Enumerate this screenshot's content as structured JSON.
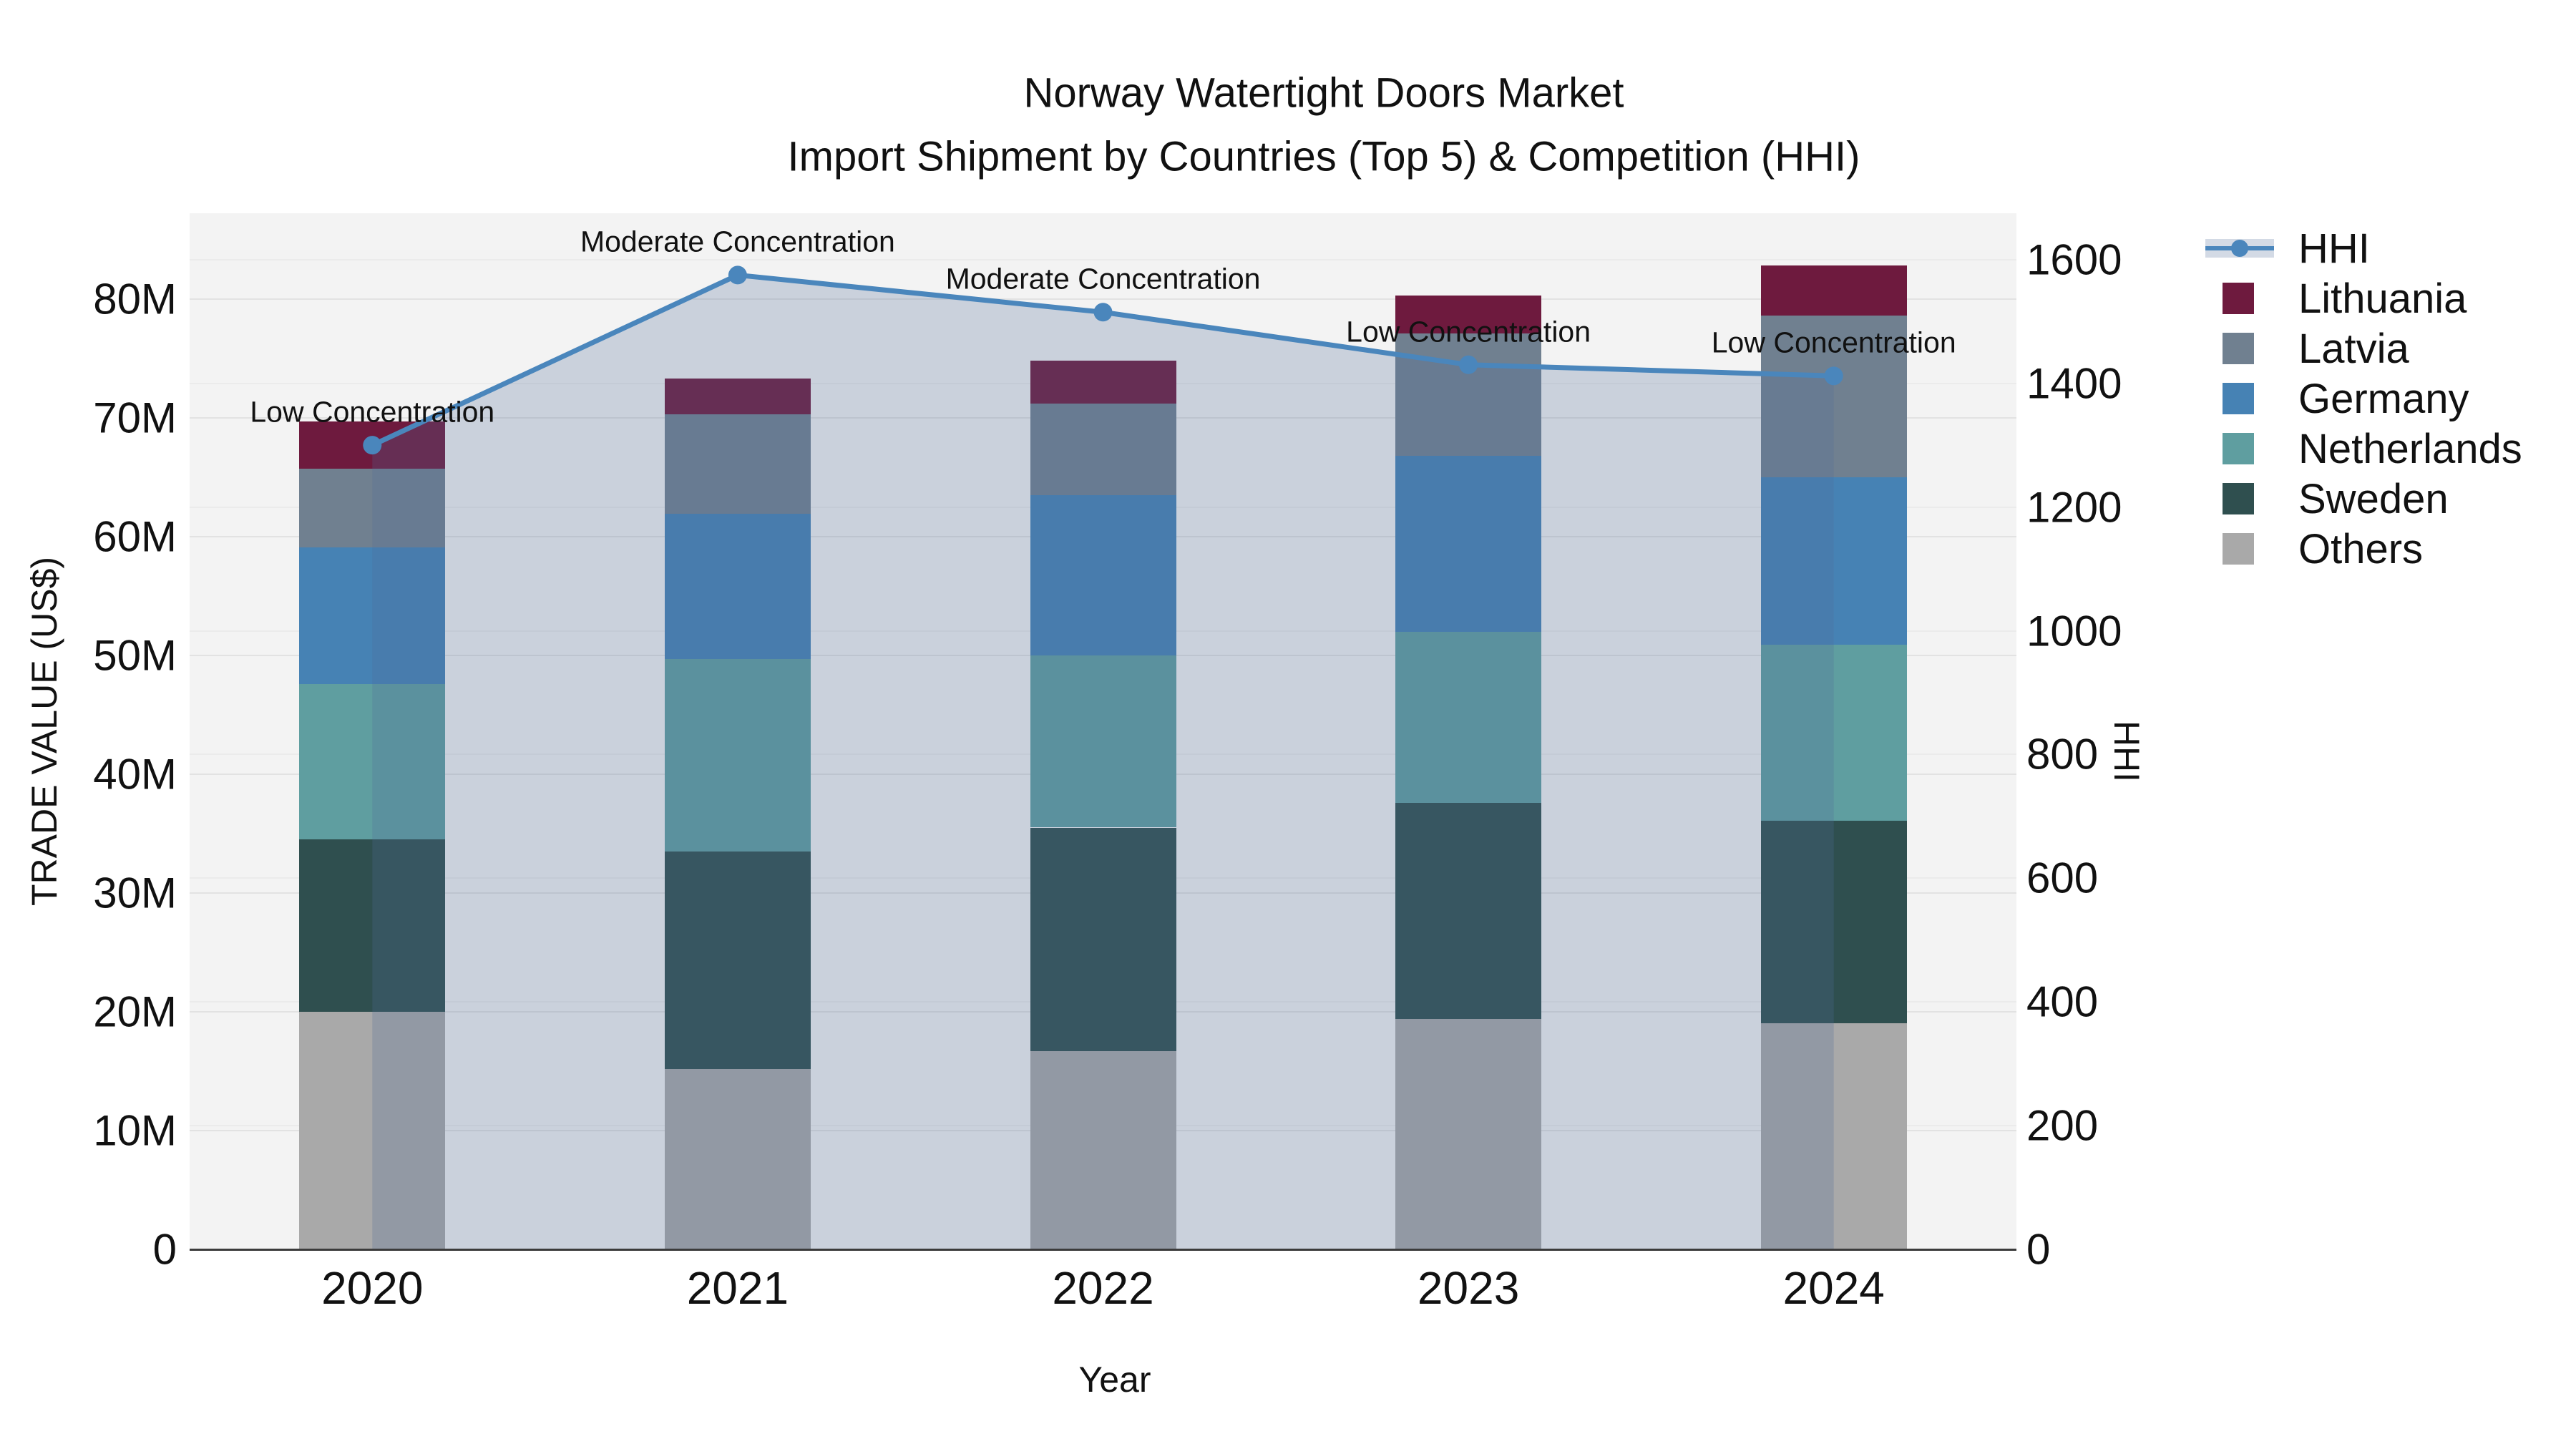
{
  "title": {
    "line1": "Norway Watertight Doors Market",
    "line2": "Import Shipment by Countries (Top 5) & Competition (HHI)"
  },
  "axes": {
    "y_left": {
      "title": "TRADE VALUE (US$)",
      "tick_labels": [
        "0",
        "10M",
        "20M",
        "30M",
        "40M",
        "50M",
        "60M",
        "70M",
        "80M"
      ],
      "tick_values_m": [
        0,
        10,
        20,
        30,
        40,
        50,
        60,
        70,
        80
      ],
      "range_m": [
        0,
        87.2
      ]
    },
    "y_right": {
      "title": "HHI",
      "tick_labels": [
        "0",
        "200",
        "400",
        "600",
        "800",
        "1000",
        "1200",
        "1400",
        "1600"
      ],
      "tick_values": [
        0,
        200,
        400,
        600,
        800,
        1000,
        1200,
        1400,
        1600
      ],
      "range": [
        0,
        1675
      ]
    },
    "x": {
      "title": "Year",
      "categories": [
        "2020",
        "2021",
        "2022",
        "2023",
        "2024"
      ]
    }
  },
  "chart_data": {
    "type": "combo",
    "categories": [
      "2020",
      "2021",
      "2022",
      "2023",
      "2024"
    ],
    "bar": {
      "type": "bar",
      "stacked": true,
      "unit": "M US$",
      "stack_order_bottom_to_top": [
        "Others",
        "Sweden",
        "Netherlands",
        "Germany",
        "Latvia",
        "Lithuania"
      ],
      "series": [
        {
          "name": "Others",
          "color": "#A9A9A9",
          "values": [
            20.0,
            15.2,
            16.7,
            19.4,
            19.0
          ]
        },
        {
          "name": "Sweden",
          "color": "#2F4F4F",
          "values": [
            14.5,
            18.3,
            18.8,
            18.2,
            17.1
          ]
        },
        {
          "name": "Netherlands",
          "color": "#5F9EA0",
          "values": [
            13.1,
            16.2,
            14.5,
            14.4,
            14.8
          ]
        },
        {
          "name": "Germany",
          "color": "#4682B4",
          "values": [
            11.5,
            12.2,
            13.5,
            14.8,
            14.1
          ]
        },
        {
          "name": "Latvia",
          "color": "#708090",
          "values": [
            6.6,
            8.4,
            7.7,
            10.3,
            13.6
          ]
        },
        {
          "name": "Lithuania",
          "color": "#6E1A3E",
          "values": [
            4.0,
            3.0,
            3.6,
            3.2,
            4.2
          ]
        }
      ],
      "totals_m": [
        69.7,
        73.3,
        74.8,
        80.3,
        82.8
      ]
    },
    "line": {
      "type": "line",
      "name": "HHI",
      "color": "#4A86BC",
      "fill_color": "rgba(78,106,150,0.25)",
      "values": [
        1300,
        1575,
        1515,
        1430,
        1412
      ],
      "annotations": [
        {
          "x": "2020",
          "text": "Low Concentration"
        },
        {
          "x": "2021",
          "text": "Moderate Concentration"
        },
        {
          "x": "2022",
          "text": "Moderate Concentration"
        },
        {
          "x": "2023",
          "text": "Low Concentration"
        },
        {
          "x": "2024",
          "text": "Low Concentration"
        }
      ]
    }
  },
  "legend": {
    "items": [
      {
        "label": "HHI",
        "type": "line",
        "color": "#4A86BC",
        "band_color": "#D3DAE5"
      },
      {
        "label": "Lithuania",
        "type": "swatch",
        "color": "#6E1A3E"
      },
      {
        "label": "Latvia",
        "type": "swatch",
        "color": "#708090"
      },
      {
        "label": "Germany",
        "type": "swatch",
        "color": "#4682B4"
      },
      {
        "label": "Netherlands",
        "type": "swatch",
        "color": "#5F9EA0"
      },
      {
        "label": "Sweden",
        "type": "swatch",
        "color": "#2F4F4F"
      },
      {
        "label": "Others",
        "type": "swatch",
        "color": "#A9A9A9"
      }
    ]
  },
  "style": {
    "figure_bg": "#FFFFFF",
    "plot_bg": "#F3F3F3",
    "grid_color": "#E2E2E2",
    "grid_color_right": "#EBEBEB",
    "axis_line_color": "#3B3B3B",
    "text_color": "#111111"
  }
}
